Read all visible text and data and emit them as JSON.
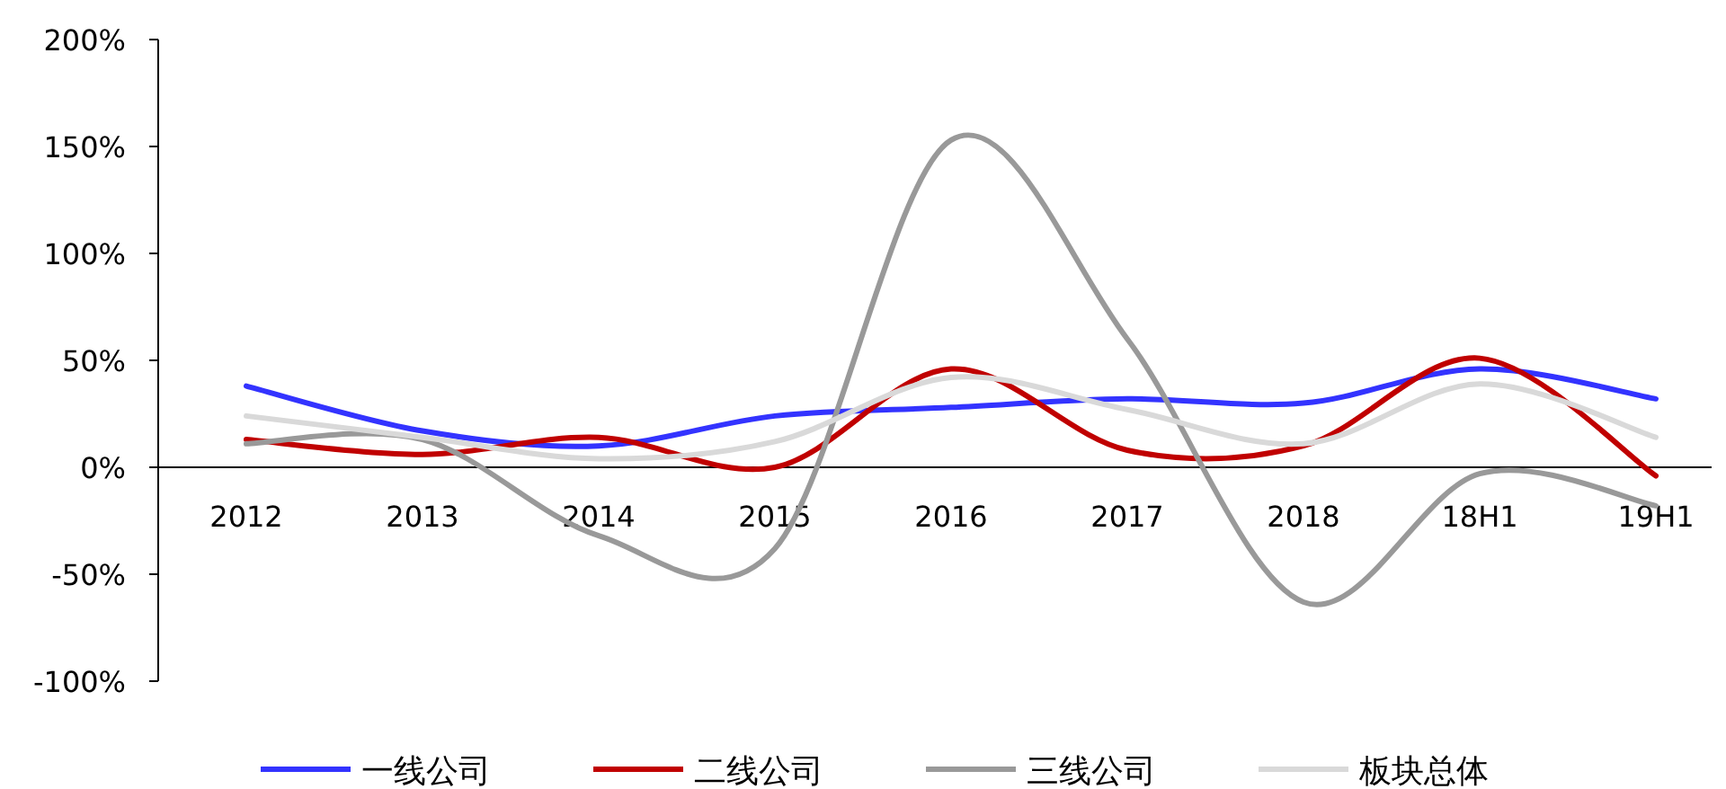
{
  "chart_data": {
    "type": "line",
    "categories": [
      "2012",
      "2013",
      "2014",
      "2015",
      "2016",
      "2017",
      "2018",
      "18H1",
      "19H1"
    ],
    "series": [
      {
        "name": "一线公司",
        "color": "#3333ff",
        "values": [
          38,
          17,
          10,
          24,
          28,
          32,
          30,
          46,
          32
        ]
      },
      {
        "name": "二线公司",
        "color": "#c00000",
        "values": [
          13,
          6,
          14,
          0,
          46,
          8,
          10,
          51,
          -4
        ]
      },
      {
        "name": "三线公司",
        "color": "#999999",
        "values": [
          11,
          13,
          -32,
          -38,
          153,
          60,
          -63,
          -3,
          -18
        ]
      },
      {
        "name": "板块总体",
        "color": "#d9d9d9",
        "values": [
          24,
          14,
          4,
          12,
          42,
          27,
          11,
          39,
          14
        ]
      }
    ],
    "ylim": [
      -100,
      200
    ],
    "yticks": [
      {
        "value": -100,
        "label": "-100%"
      },
      {
        "value": -50,
        "label": "-50%"
      },
      {
        "value": 0,
        "label": "0%"
      },
      {
        "value": 50,
        "label": "50%"
      },
      {
        "value": 100,
        "label": "100%"
      },
      {
        "value": 150,
        "label": "150%"
      },
      {
        "value": 200,
        "label": "200%"
      }
    ],
    "legend": "bottom"
  }
}
